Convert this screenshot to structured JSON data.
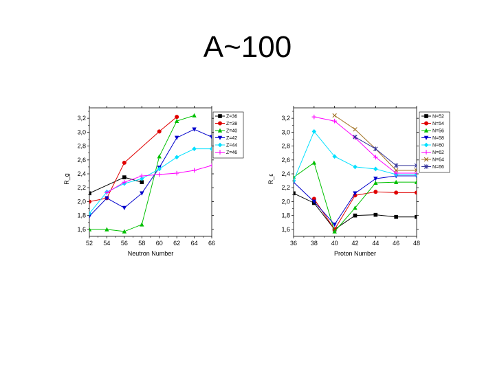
{
  "slide": {
    "title": "A~100"
  },
  "chart_data": [
    {
      "type": "line",
      "ylabel": "R_g",
      "xlabel": "Neutron Number",
      "xlim": [
        52,
        66
      ],
      "ylim": [
        1.5,
        3.35
      ],
      "xticks": [
        "52",
        "54",
        "56",
        "58",
        "60",
        "62",
        "64",
        "66"
      ],
      "yticks": [
        "1,6",
        "1,8",
        "2,0",
        "2,2",
        "2,4",
        "2,6",
        "2,8",
        "3,0",
        "3,2"
      ],
      "series": [
        {
          "name": "Z=36",
          "color": "#000000",
          "marker": "square",
          "x": [
            52,
            56,
            58
          ],
          "y": [
            2.12,
            2.35,
            2.28
          ]
        },
        {
          "name": "Z=38",
          "color": "#e00000",
          "marker": "circle",
          "x": [
            52,
            54,
            56,
            60,
            62
          ],
          "y": [
            2.0,
            2.05,
            2.56,
            3.01,
            3.22
          ]
        },
        {
          "name": "Z=40",
          "color": "#00c000",
          "marker": "triangle-up",
          "x": [
            52,
            54,
            56,
            58,
            60,
            62,
            64
          ],
          "y": [
            1.6,
            1.6,
            1.57,
            1.67,
            2.65,
            3.16,
            3.24
          ]
        },
        {
          "name": "Z=42",
          "color": "#0000cc",
          "marker": "triangle-down",
          "x": [
            52,
            54,
            56,
            58,
            60,
            62,
            64,
            66
          ],
          "y": [
            1.79,
            2.05,
            1.91,
            2.12,
            2.49,
            2.92,
            3.04,
            2.93
          ]
        },
        {
          "name": "Z=44",
          "color": "#00e0ff",
          "marker": "diamond",
          "x": [
            52,
            54,
            56,
            58,
            60,
            62,
            64,
            66
          ],
          "y": [
            1.83,
            2.14,
            2.26,
            2.33,
            2.47,
            2.64,
            2.76,
            2.76
          ]
        },
        {
          "name": "Z=46",
          "color": "#ff00ff",
          "marker": "plus",
          "x": [
            54,
            56,
            58,
            60,
            62,
            64,
            66
          ],
          "y": [
            2.13,
            2.28,
            2.37,
            2.39,
            2.41,
            2.45,
            2.52
          ]
        }
      ]
    },
    {
      "type": "line",
      "ylabel": "R_ε",
      "xlabel": "Proton Number",
      "xlim": [
        36,
        48
      ],
      "ylim": [
        1.5,
        3.35
      ],
      "xticks": [
        "36",
        "38",
        "40",
        "42",
        "44",
        "46",
        "48"
      ],
      "yticks": [
        "1,6",
        "1,8",
        "2,0",
        "2,2",
        "2,4",
        "2,6",
        "2,8",
        "3,0",
        "3,2"
      ],
      "series": [
        {
          "name": "N=52",
          "color": "#000000",
          "marker": "square",
          "x": [
            36,
            38,
            40,
            42,
            44,
            46,
            48
          ],
          "y": [
            2.12,
            1.98,
            1.6,
            1.8,
            1.81,
            1.78,
            1.78
          ]
        },
        {
          "name": "N=54",
          "color": "#e00000",
          "marker": "circle",
          "x": [
            38,
            40,
            42,
            44,
            46,
            48
          ],
          "y": [
            2.04,
            1.6,
            2.09,
            2.14,
            2.13,
            2.13
          ]
        },
        {
          "name": "N=56",
          "color": "#00c000",
          "marker": "triangle-up",
          "x": [
            36,
            38,
            40,
            42,
            44,
            46,
            48
          ],
          "y": [
            2.35,
            2.56,
            1.57,
            1.91,
            2.27,
            2.28,
            2.28
          ]
        },
        {
          "name": "N=58",
          "color": "#0000cc",
          "marker": "triangle-down",
          "x": [
            36,
            38,
            40,
            42,
            44,
            46,
            48
          ],
          "y": [
            2.28,
            2.0,
            1.67,
            2.12,
            2.33,
            2.37,
            2.37
          ]
        },
        {
          "name": "N=60",
          "color": "#00e0ff",
          "marker": "diamond",
          "x": [
            36,
            38,
            40,
            42,
            44,
            46,
            48
          ],
          "y": [
            2.3,
            3.01,
            2.65,
            2.5,
            2.47,
            2.39,
            2.39
          ]
        },
        {
          "name": "N=62",
          "color": "#ff00ff",
          "marker": "plus",
          "x": [
            38,
            40,
            42,
            44,
            46,
            48
          ],
          "y": [
            3.22,
            3.16,
            2.92,
            2.64,
            2.41,
            2.41
          ]
        },
        {
          "name": "N=64",
          "color": "#a07020",
          "marker": "x",
          "x": [
            40,
            42,
            44,
            46,
            48
          ],
          "y": [
            3.24,
            3.04,
            2.76,
            2.45,
            2.45
          ]
        },
        {
          "name": "N=66",
          "color": "#333399",
          "marker": "star",
          "x": [
            42,
            44,
            46,
            48
          ],
          "y": [
            2.93,
            2.76,
            2.52,
            2.52
          ]
        }
      ]
    }
  ]
}
